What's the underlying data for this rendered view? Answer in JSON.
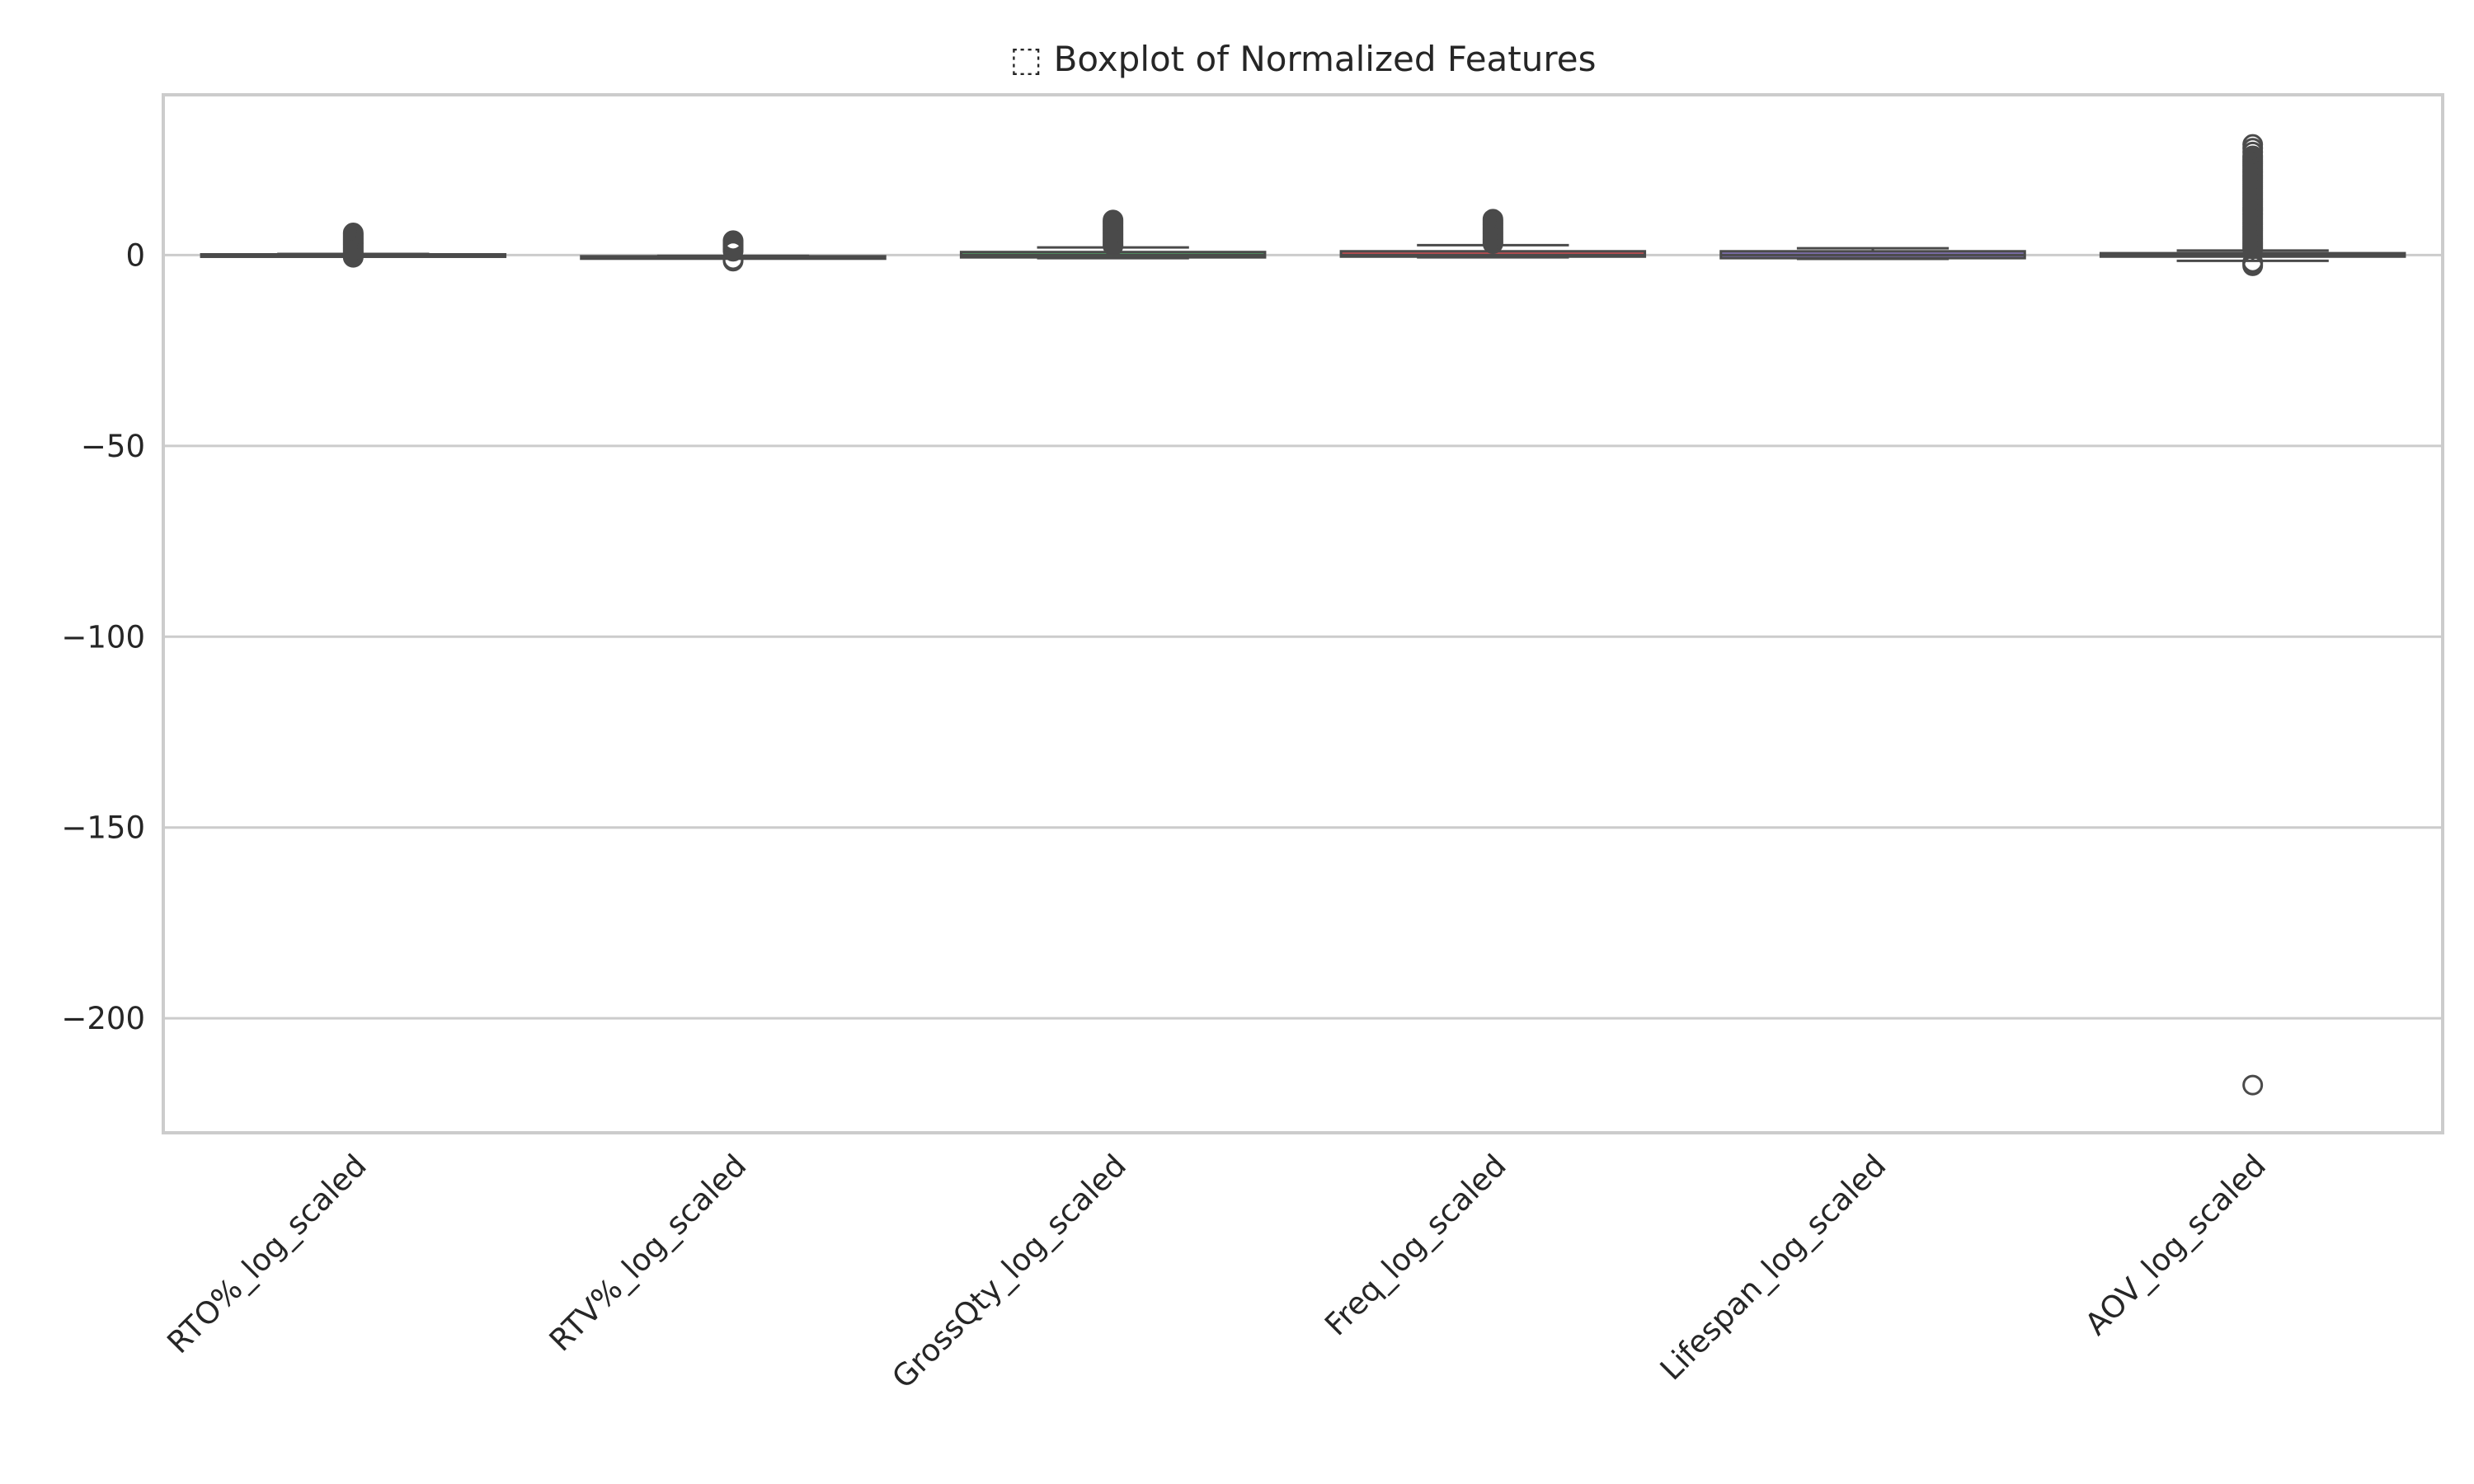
{
  "chart_data": {
    "type": "box",
    "title": "⬚ Boxplot of Normalized Features",
    "xlabel": "",
    "ylabel": "",
    "ylim": [
      -230,
      42
    ],
    "yticks": [
      0,
      -50,
      -100,
      -150,
      -200
    ],
    "ytick_labels": [
      "0",
      "−50",
      "−100",
      "−150",
      "−200"
    ],
    "grid": true,
    "legend": "none",
    "categories": [
      "RTO%_log_scaled",
      "RTV%_log_scaled",
      "GrossQty_log_scaled",
      "Freq_log_scaled",
      "Lifespan_log_scaled",
      "AOV_log_scaled"
    ],
    "boxes": [
      {
        "name": "RTO%_log_scaled",
        "whislo": -0.3,
        "q1": -0.2,
        "med": 0.0,
        "q3": 0.2,
        "whishi": 0.3,
        "color": "#4c72b0",
        "fliers": [
          -0.6,
          -0.2,
          0.2,
          0.6,
          1.0,
          1.4,
          1.8,
          2.2,
          2.6,
          3.0,
          3.4,
          3.8,
          4.2,
          4.6,
          5.0,
          5.4,
          5.8
        ]
      },
      {
        "name": "RTV%_log_scaled",
        "whislo": -0.6,
        "q1": -0.5,
        "med": -0.4,
        "q3": -0.3,
        "whishi": -0.2,
        "color": "#dd8452",
        "fliers": [
          -1.6,
          -1.2,
          1.0,
          1.4,
          1.8,
          2.2,
          2.6,
          3.0,
          3.4,
          3.8
        ]
      },
      {
        "name": "GrossQty_log_scaled",
        "whislo": -0.8,
        "q1": -0.6,
        "med": 0.0,
        "q3": 0.8,
        "whishi": 2.0,
        "color": "#55a868",
        "fliers": [
          2.4,
          2.8,
          3.2,
          3.6,
          4.0,
          4.4,
          4.8,
          5.2,
          5.6,
          6.0,
          6.4,
          6.8,
          7.2,
          7.6,
          8.0,
          8.4,
          8.8,
          9.2
        ]
      },
      {
        "name": "Freq_log_scaled",
        "whislo": -0.6,
        "q1": -0.4,
        "med": 0.0,
        "q3": 1.0,
        "whishi": 2.6,
        "color": "#c44e52",
        "fliers": [
          3.0,
          3.4,
          3.8,
          4.2,
          4.6,
          5.0,
          5.4,
          5.8,
          6.2,
          6.6,
          7.0,
          7.4,
          7.8,
          8.2,
          8.6,
          9.0,
          9.4
        ]
      },
      {
        "name": "Lifespan_log_scaled",
        "whislo": -1.0,
        "q1": -0.8,
        "med": 0.0,
        "q3": 1.0,
        "whishi": 1.8,
        "color": "#8172b3",
        "fliers": []
      },
      {
        "name": "AOV_log_scaled",
        "whislo": -1.5,
        "q1": -0.4,
        "med": 0.1,
        "q3": 0.5,
        "whishi": 1.2,
        "color": "#937860",
        "fliers": [
          -217.5,
          -2.8,
          -2.3,
          -1.9,
          1.6,
          2.0,
          2.5,
          3.0,
          3.5,
          4.0,
          4.5,
          5.0,
          5.5,
          6.0,
          6.5,
          7.0,
          7.5,
          8.0,
          8.5,
          9.0,
          9.5,
          10.0,
          10.5,
          11.0,
          11.5,
          12.0,
          12.5,
          13.0,
          13.5,
          14.0,
          14.5,
          15.0,
          15.5,
          16.0,
          16.5,
          17.0,
          17.5,
          18.0,
          18.5,
          19.0,
          19.5,
          20.0,
          20.5,
          21.0,
          21.5,
          22.0,
          22.5,
          23.0,
          23.5,
          24.0,
          24.5,
          25.0,
          25.5,
          26.0,
          27.0,
          28.0,
          29.0
        ]
      }
    ]
  }
}
